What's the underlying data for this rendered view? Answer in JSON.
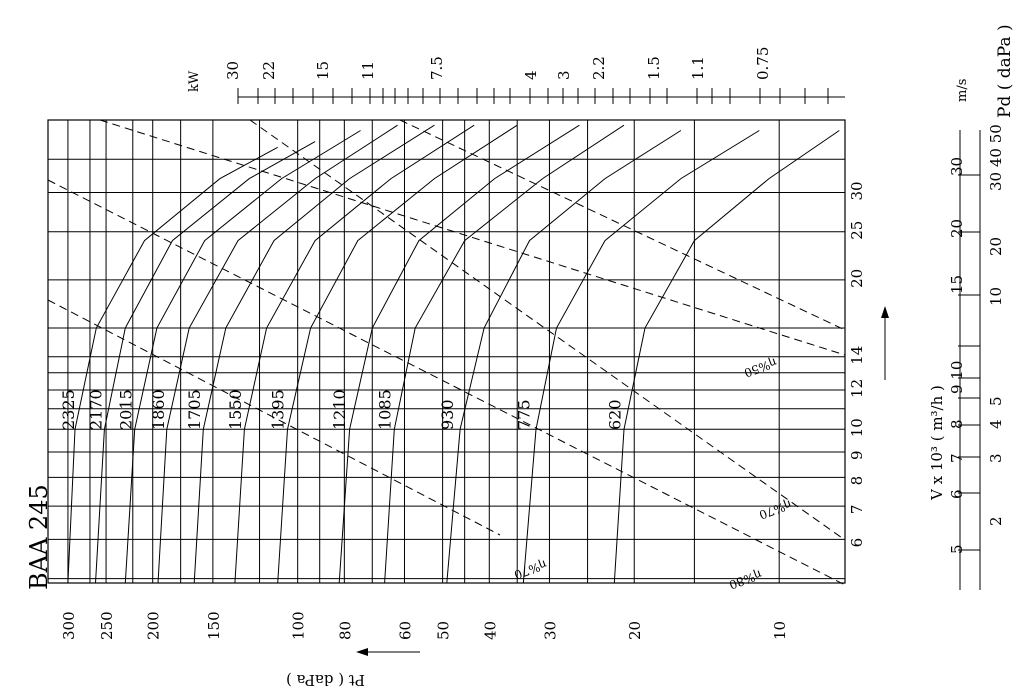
{
  "title": "BAA 245",
  "units": {
    "pt": "Pt ( daPa )",
    "v": "V x 10³ ( m³/h )",
    "ms": "m/s",
    "pd": "Pd ( daPa )",
    "kw": "kW"
  },
  "chart_data": {
    "type": "line",
    "title": "BAA 245",
    "xlabel": "V x 10³ ( m³/h )",
    "ylabel": "Pt ( daPa )",
    "x_scale": "log",
    "y_scale": "log",
    "xlim": [
      4.9,
      42
    ],
    "ylim": [
      7.3,
      330
    ],
    "x_ticks": [
      6,
      7,
      8,
      9,
      10,
      12,
      14,
      20,
      25,
      30
    ],
    "y_ticks": [
      300,
      250,
      200,
      150,
      100,
      80,
      60,
      50,
      40,
      30,
      20,
      10
    ],
    "power_kw_ticks": [
      "30",
      "22",
      "15",
      "11",
      "7.5",
      "4",
      "3",
      "2.2",
      "1.5",
      "1.1",
      "0.75"
    ],
    "velocity_ms_ticks": [
      "5",
      "6",
      "7",
      "8",
      "9 10",
      "15",
      "20",
      "30"
    ],
    "pd_dapa_ticks": [
      "2",
      "3",
      "4",
      "5",
      "10",
      "20",
      "30 40 50"
    ],
    "efficiency_labels": [
      "η%50",
      "η%70",
      "η%70",
      "η%80"
    ],
    "series": [
      {
        "name": "2325",
        "points": [
          [
            4.9,
            300
          ],
          [
            10,
            290
          ],
          [
            16,
            262
          ],
          [
            24,
            208
          ],
          [
            32,
            145
          ],
          [
            37,
            110
          ]
        ]
      },
      {
        "name": "2170",
        "points": [
          [
            4.9,
            263
          ],
          [
            10,
            252
          ],
          [
            16,
            228
          ],
          [
            24,
            182
          ],
          [
            32,
            126
          ],
          [
            38,
            92
          ]
        ]
      },
      {
        "name": "2015",
        "points": [
          [
            4.9,
            228
          ],
          [
            10,
            218
          ],
          [
            16,
            196
          ],
          [
            24,
            156
          ],
          [
            32,
            108
          ],
          [
            40,
            74
          ]
        ]
      },
      {
        "name": "1860",
        "points": [
          [
            4.9,
            195
          ],
          [
            10,
            187
          ],
          [
            16,
            168
          ],
          [
            24,
            133
          ],
          [
            32,
            92
          ],
          [
            41,
            62
          ]
        ]
      },
      {
        "name": "1705",
        "points": [
          [
            4.9,
            164
          ],
          [
            10,
            157
          ],
          [
            16,
            141
          ],
          [
            24,
            112
          ],
          [
            32,
            78
          ],
          [
            41,
            52
          ]
        ]
      },
      {
        "name": "1550",
        "points": [
          [
            4.9,
            135
          ],
          [
            10,
            129
          ],
          [
            16,
            116
          ],
          [
            24,
            92
          ],
          [
            32,
            64
          ],
          [
            41,
            43
          ]
        ]
      },
      {
        "name": "1395",
        "points": [
          [
            4.9,
            110
          ],
          [
            10,
            105
          ],
          [
            16,
            94
          ],
          [
            24,
            75
          ],
          [
            32,
            52
          ],
          [
            41,
            35
          ]
        ]
      },
      {
        "name": "1210",
        "points": [
          [
            4.9,
            82
          ],
          [
            10,
            78
          ],
          [
            16,
            70
          ],
          [
            24,
            56
          ],
          [
            32,
            39
          ],
          [
            41,
            26
          ]
        ]
      },
      {
        "name": "1085",
        "points": [
          [
            4.9,
            66
          ],
          [
            10,
            63
          ],
          [
            16,
            57
          ],
          [
            24,
            45
          ],
          [
            32,
            31
          ],
          [
            41,
            21
          ]
        ]
      },
      {
        "name": "930",
        "points": [
          [
            4.9,
            49
          ],
          [
            10,
            46
          ],
          [
            16,
            41
          ],
          [
            24,
            33
          ],
          [
            32,
            23
          ],
          [
            40,
            16
          ]
        ]
      },
      {
        "name": "775",
        "points": [
          [
            4.9,
            34
          ],
          [
            10,
            32
          ],
          [
            16,
            29
          ],
          [
            24,
            23
          ],
          [
            32,
            16
          ],
          [
            40,
            11
          ]
        ]
      },
      {
        "name": "620",
        "points": [
          [
            4.9,
            22
          ],
          [
            10,
            21
          ],
          [
            16,
            19
          ],
          [
            24,
            15
          ],
          [
            32,
            10.5
          ],
          [
            40,
            7.5
          ]
        ]
      }
    ]
  }
}
